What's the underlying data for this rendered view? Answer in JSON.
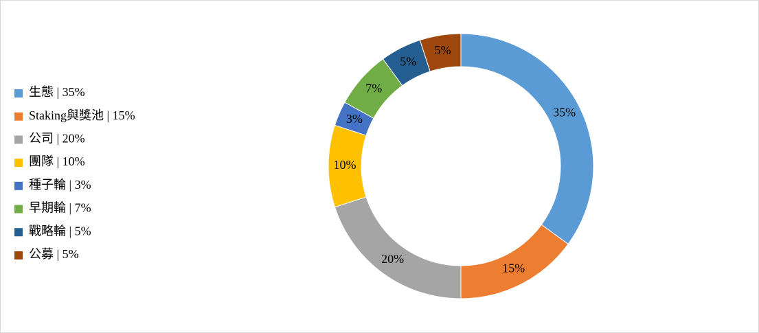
{
  "chart_data": {
    "type": "donut",
    "categories": [
      "生態 | 35%",
      "Staking與獎池 | 15%",
      "公司 | 20%",
      "團隊 | 10%",
      "種子輪 | 3%",
      "早期輪 | 7%",
      "戰略輪 | 5%",
      "公募 | 5%"
    ],
    "values": [
      35,
      15,
      20,
      10,
      3,
      7,
      5,
      5
    ],
    "value_labels": [
      "35%",
      "15%",
      "20%",
      "10%",
      "3%",
      "7%",
      "5%",
      "5%"
    ],
    "colors": [
      "#5b9bd5",
      "#ed7d31",
      "#a5a5a5",
      "#ffc000",
      "#4472c4",
      "#70ad47",
      "#255e91",
      "#9e480e"
    ],
    "legend": "left"
  }
}
